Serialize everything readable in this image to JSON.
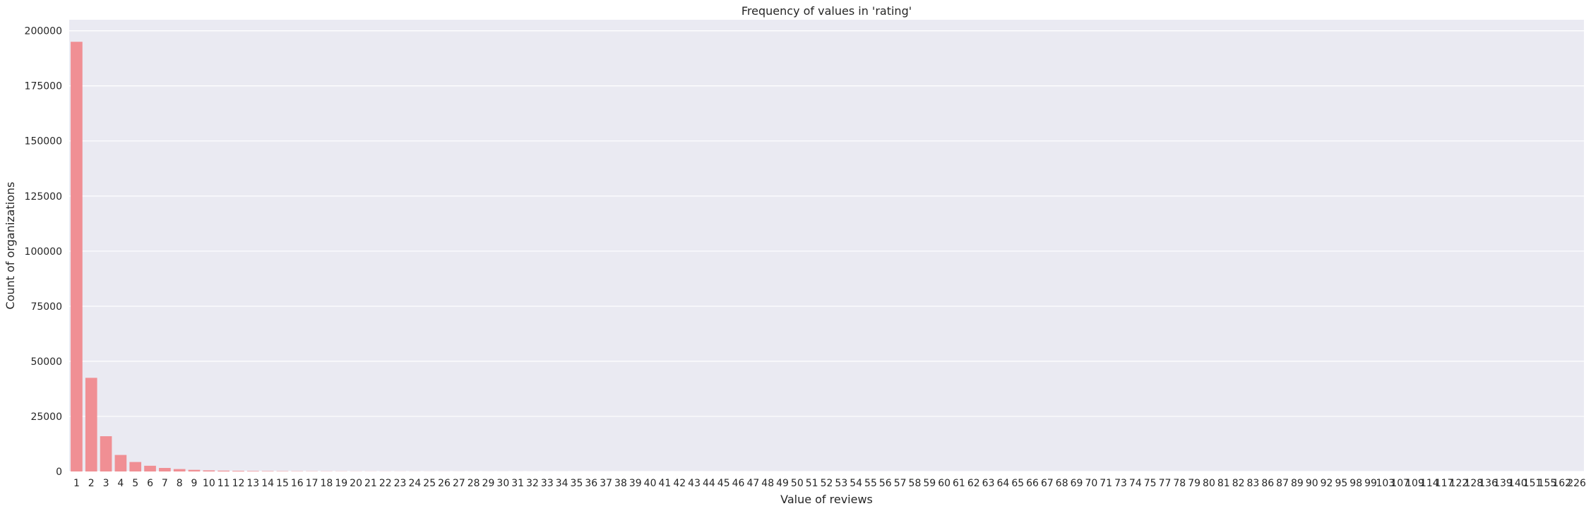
{
  "chart_data": {
    "type": "bar",
    "title": "Frequency of values in 'rating'",
    "xlabel": "Value of reviews",
    "ylabel": "Count of organizations",
    "ylim": [
      0,
      205000
    ],
    "yticks": [
      0,
      25000,
      50000,
      75000,
      100000,
      125000,
      150000,
      175000,
      200000
    ],
    "grid": true,
    "colors": {
      "bar": "#f08f94",
      "background": "#eaeaf2",
      "grid": "#ffffff"
    },
    "categories": [
      "1",
      "2",
      "3",
      "4",
      "5",
      "6",
      "7",
      "8",
      "9",
      "10",
      "11",
      "12",
      "13",
      "14",
      "15",
      "16",
      "17",
      "18",
      "19",
      "20",
      "21",
      "22",
      "23",
      "24",
      "25",
      "26",
      "27",
      "28",
      "29",
      "30",
      "31",
      "32",
      "33",
      "34",
      "35",
      "36",
      "37",
      "38",
      "39",
      "40",
      "41",
      "42",
      "43",
      "44",
      "45",
      "46",
      "47",
      "48",
      "49",
      "50",
      "51",
      "52",
      "53",
      "54",
      "55",
      "56",
      "57",
      "58",
      "59",
      "60",
      "61",
      "62",
      "63",
      "64",
      "65",
      "66",
      "67",
      "68",
      "69",
      "70",
      "71",
      "73",
      "74",
      "75",
      "77",
      "78",
      "79",
      "80",
      "81",
      "82",
      "83",
      "86",
      "87",
      "89",
      "90",
      "92",
      "95",
      "98",
      "99",
      "103",
      "107",
      "109",
      "114",
      "117",
      "122",
      "128",
      "136",
      "139",
      "140",
      "151",
      "155",
      "162",
      "226"
    ],
    "values": [
      195000,
      42500,
      16000,
      7500,
      4300,
      2600,
      1600,
      1100,
      750,
      500,
      380,
      290,
      230,
      180,
      150,
      120,
      100,
      85,
      70,
      60,
      50,
      44,
      38,
      33,
      29,
      26,
      23,
      20,
      18,
      16,
      14,
      13,
      12,
      11,
      10,
      9,
      8,
      7,
      7,
      6,
      6,
      5,
      5,
      5,
      4,
      4,
      4,
      3,
      3,
      3,
      3,
      3,
      2,
      2,
      2,
      2,
      2,
      2,
      2,
      2,
      2,
      1,
      1,
      1,
      1,
      1,
      1,
      1,
      1,
      1,
      1,
      1,
      1,
      1,
      1,
      1,
      1,
      1,
      1,
      1,
      1,
      1,
      1,
      1,
      1,
      1,
      1,
      1,
      1,
      1,
      1,
      1,
      1,
      1,
      1,
      1,
      1,
      1,
      1,
      1,
      1,
      1,
      1
    ]
  }
}
